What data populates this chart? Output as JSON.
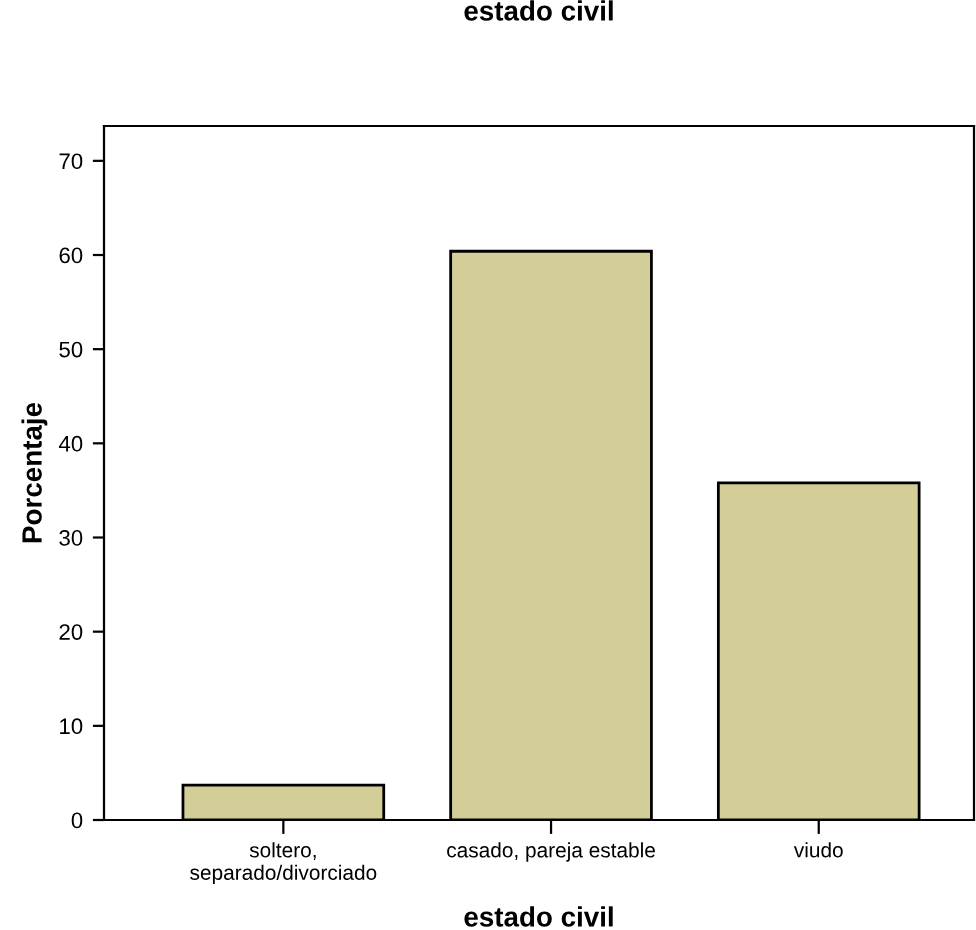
{
  "chart_data": {
    "type": "bar",
    "title": "estado civil",
    "xlabel": "estado civil",
    "ylabel": "Porcentaje",
    "categories": [
      "soltero,\nseparado/divorciado",
      "casado, pareja estable",
      "viudo"
    ],
    "values": [
      3.7,
      60.4,
      35.8
    ],
    "color": "#d3ce97",
    "ylim": [
      0,
      73.7
    ],
    "yticks": [
      0,
      10,
      20,
      30,
      40,
      50,
      60,
      70
    ],
    "grid": false,
    "legend": false
  }
}
